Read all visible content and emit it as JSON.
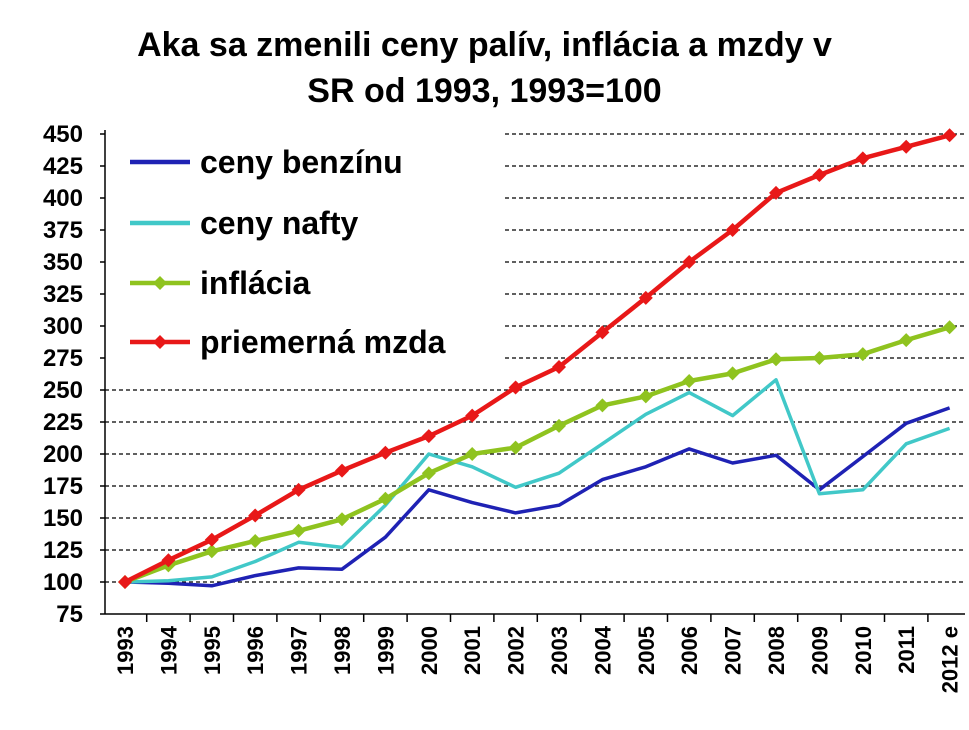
{
  "chart_data": {
    "type": "line",
    "title_line1": "Aka sa zmenili ceny palív, inflácia a mzdy v",
    "title_line2": "SR od 1993, 1993=100",
    "categories": [
      "1993",
      "1994",
      "1995",
      "1996",
      "1997",
      "1998",
      "1999",
      "2000",
      "2001",
      "2002",
      "2003",
      "2004",
      "2005",
      "2006",
      "2007",
      "2008",
      "2009",
      "2010",
      "2011",
      "2012 e"
    ],
    "ylim": [
      75,
      450
    ],
    "yticks": [
      75,
      100,
      125,
      150,
      175,
      200,
      225,
      250,
      275,
      300,
      325,
      350,
      375,
      400,
      425,
      450
    ],
    "grid": "horizontal-dashed",
    "legend_position": "top-left",
    "series": [
      {
        "name": "ceny benzínu",
        "color": "#1f22b4",
        "marker": "none",
        "values": [
          100,
          99,
          97,
          105,
          111,
          110,
          135,
          172,
          162,
          154,
          160,
          180,
          190,
          204,
          193,
          199,
          172,
          198,
          224,
          236
        ]
      },
      {
        "name": "ceny nafty",
        "color": "#41c8c8",
        "marker": "none",
        "values": [
          100,
          101,
          104,
          116,
          131,
          127,
          160,
          200,
          190,
          174,
          185,
          208,
          231,
          248,
          230,
          258,
          169,
          172,
          208,
          220
        ]
      },
      {
        "name": "inflácia",
        "color": "#8fc31f",
        "marker": "diamond",
        "values": [
          100,
          113,
          124,
          132,
          140,
          149,
          165,
          185,
          200,
          205,
          222,
          238,
          245,
          257,
          263,
          274,
          275,
          278,
          289,
          299
        ]
      },
      {
        "name": "priemerná mzda",
        "color": "#e81818",
        "marker": "diamond",
        "values": [
          100,
          117,
          133,
          152,
          172,
          187,
          201,
          214,
          230,
          252,
          268,
          295,
          322,
          350,
          375,
          404,
          418,
          431,
          440,
          449
        ]
      }
    ]
  }
}
